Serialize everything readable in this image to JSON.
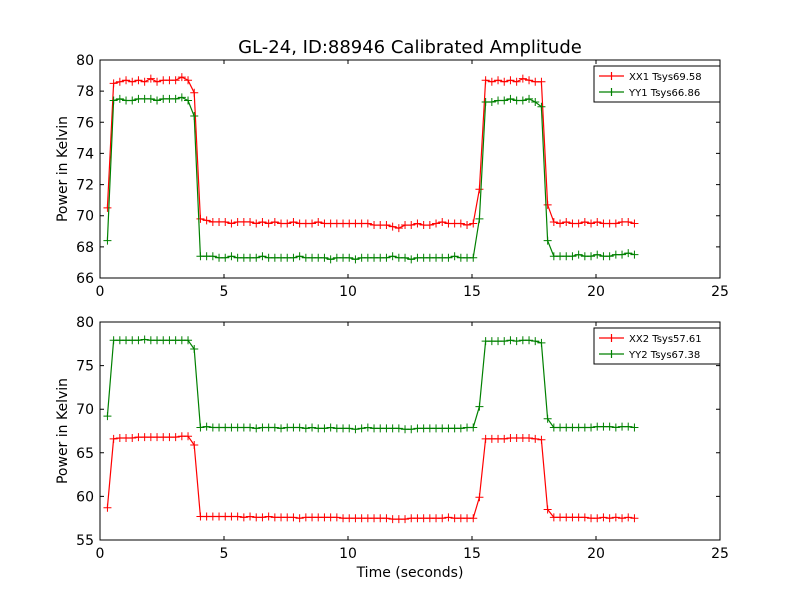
{
  "figure": {
    "title": "GL-24, ID:88946 Calibrated Amplitude",
    "xlabel": "Time (seconds)"
  },
  "chart_data": [
    {
      "type": "line",
      "ylabel": "Power in Kelvin",
      "xlim": [
        0,
        25
      ],
      "ylim": [
        66,
        80
      ],
      "xticks": [
        0,
        5,
        10,
        15,
        20,
        25
      ],
      "yticks": [
        66,
        68,
        70,
        72,
        74,
        76,
        78,
        80
      ],
      "legend_position": "top-right",
      "x": [
        0.3,
        0.55,
        0.8,
        1.05,
        1.3,
        1.55,
        1.8,
        2.05,
        2.3,
        2.55,
        2.8,
        3.05,
        3.3,
        3.55,
        3.8,
        4.05,
        4.3,
        4.55,
        4.8,
        5.05,
        5.3,
        5.55,
        5.8,
        6.05,
        6.3,
        6.55,
        6.8,
        7.05,
        7.3,
        7.55,
        7.8,
        8.05,
        8.3,
        8.55,
        8.8,
        9.05,
        9.3,
        9.55,
        9.8,
        10.05,
        10.3,
        10.55,
        10.8,
        11.05,
        11.3,
        11.55,
        11.8,
        12.05,
        12.3,
        12.55,
        12.8,
        13.05,
        13.3,
        13.55,
        13.8,
        14.05,
        14.3,
        14.55,
        14.8,
        15.05,
        15.3,
        15.55,
        15.8,
        16.05,
        16.3,
        16.55,
        16.8,
        17.05,
        17.3,
        17.55,
        17.8,
        18.05,
        18.3,
        18.55,
        18.8,
        19.05,
        19.3,
        19.55,
        19.8,
        20.05,
        20.3,
        20.55,
        20.8,
        21.05,
        21.3,
        21.55
      ],
      "series": [
        {
          "name": "XX1 Tsys69.58",
          "color": "#ff0000",
          "values": [
            70.5,
            78.5,
            78.6,
            78.7,
            78.6,
            78.7,
            78.6,
            78.8,
            78.6,
            78.7,
            78.7,
            78.7,
            78.9,
            78.7,
            77.9,
            69.8,
            69.7,
            69.6,
            69.6,
            69.6,
            69.5,
            69.6,
            69.6,
            69.6,
            69.5,
            69.6,
            69.5,
            69.6,
            69.5,
            69.5,
            69.6,
            69.5,
            69.5,
            69.5,
            69.6,
            69.5,
            69.5,
            69.5,
            69.5,
            69.5,
            69.5,
            69.5,
            69.5,
            69.4,
            69.4,
            69.4,
            69.3,
            69.2,
            69.4,
            69.4,
            69.5,
            69.4,
            69.4,
            69.5,
            69.6,
            69.5,
            69.5,
            69.5,
            69.4,
            69.5,
            71.7,
            78.7,
            78.6,
            78.7,
            78.6,
            78.7,
            78.6,
            78.8,
            78.7,
            78.6,
            78.6,
            70.7,
            69.6,
            69.5,
            69.6,
            69.5,
            69.5,
            69.6,
            69.5,
            69.6,
            69.5,
            69.5,
            69.5,
            69.6,
            69.6,
            69.5
          ]
        },
        {
          "name": "YY1 Tsys66.86",
          "color": "#008000",
          "values": [
            68.4,
            77.4,
            77.5,
            77.4,
            77.4,
            77.5,
            77.5,
            77.5,
            77.4,
            77.5,
            77.5,
            77.5,
            77.6,
            77.4,
            76.4,
            67.4,
            67.4,
            67.4,
            67.3,
            67.3,
            67.4,
            67.3,
            67.3,
            67.3,
            67.3,
            67.4,
            67.3,
            67.3,
            67.3,
            67.3,
            67.3,
            67.4,
            67.3,
            67.3,
            67.3,
            67.3,
            67.2,
            67.3,
            67.3,
            67.3,
            67.2,
            67.3,
            67.3,
            67.3,
            67.3,
            67.3,
            67.4,
            67.3,
            67.3,
            67.2,
            67.3,
            67.3,
            67.3,
            67.3,
            67.3,
            67.3,
            67.4,
            67.3,
            67.3,
            67.3,
            69.8,
            77.3,
            77.3,
            77.4,
            77.4,
            77.5,
            77.4,
            77.4,
            77.5,
            77.3,
            77.0,
            68.4,
            67.4,
            67.4,
            67.4,
            67.4,
            67.5,
            67.4,
            67.4,
            67.5,
            67.4,
            67.4,
            67.5,
            67.5,
            67.6,
            67.5
          ]
        }
      ]
    },
    {
      "type": "line",
      "ylabel": "Power in Kelvin",
      "xlabel": "Time (seconds)",
      "xlim": [
        0,
        25
      ],
      "ylim": [
        55,
        80
      ],
      "xticks": [
        0,
        5,
        10,
        15,
        20,
        25
      ],
      "yticks": [
        55,
        60,
        65,
        70,
        75,
        80
      ],
      "legend_position": "top-right",
      "x": [
        0.3,
        0.55,
        0.8,
        1.05,
        1.3,
        1.55,
        1.8,
        2.05,
        2.3,
        2.55,
        2.8,
        3.05,
        3.3,
        3.55,
        3.8,
        4.05,
        4.3,
        4.55,
        4.8,
        5.05,
        5.3,
        5.55,
        5.8,
        6.05,
        6.3,
        6.55,
        6.8,
        7.05,
        7.3,
        7.55,
        7.8,
        8.05,
        8.3,
        8.55,
        8.8,
        9.05,
        9.3,
        9.55,
        9.8,
        10.05,
        10.3,
        10.55,
        10.8,
        11.05,
        11.3,
        11.55,
        11.8,
        12.05,
        12.3,
        12.55,
        12.8,
        13.05,
        13.3,
        13.55,
        13.8,
        14.05,
        14.3,
        14.55,
        14.8,
        15.05,
        15.3,
        15.55,
        15.8,
        16.05,
        16.3,
        16.55,
        16.8,
        17.05,
        17.3,
        17.55,
        17.8,
        18.05,
        18.3,
        18.55,
        18.8,
        19.05,
        19.3,
        19.55,
        19.8,
        20.05,
        20.3,
        20.55,
        20.8,
        21.05,
        21.3,
        21.55
      ],
      "series": [
        {
          "name": "XX2 Tsys57.61",
          "color": "#ff0000",
          "values": [
            58.7,
            66.6,
            66.7,
            66.7,
            66.7,
            66.8,
            66.8,
            66.8,
            66.8,
            66.8,
            66.8,
            66.8,
            66.9,
            66.9,
            65.9,
            57.7,
            57.7,
            57.7,
            57.7,
            57.7,
            57.7,
            57.7,
            57.6,
            57.7,
            57.6,
            57.6,
            57.7,
            57.6,
            57.6,
            57.6,
            57.6,
            57.5,
            57.6,
            57.6,
            57.6,
            57.6,
            57.6,
            57.6,
            57.5,
            57.5,
            57.5,
            57.5,
            57.5,
            57.5,
            57.5,
            57.5,
            57.4,
            57.4,
            57.4,
            57.5,
            57.5,
            57.5,
            57.5,
            57.5,
            57.5,
            57.6,
            57.5,
            57.5,
            57.5,
            57.5,
            59.9,
            66.6,
            66.6,
            66.6,
            66.6,
            66.7,
            66.7,
            66.7,
            66.7,
            66.6,
            66.5,
            58.5,
            57.6,
            57.6,
            57.6,
            57.6,
            57.6,
            57.6,
            57.5,
            57.5,
            57.6,
            57.5,
            57.6,
            57.5,
            57.6,
            57.5
          ]
        },
        {
          "name": "YY2 Tsys67.38",
          "color": "#008000",
          "values": [
            69.2,
            77.9,
            77.9,
            77.9,
            77.9,
            77.9,
            78.0,
            77.9,
            77.9,
            77.9,
            77.9,
            77.9,
            77.9,
            77.9,
            76.9,
            67.9,
            68.0,
            67.9,
            67.9,
            67.9,
            67.9,
            67.9,
            67.9,
            67.9,
            67.8,
            67.9,
            67.9,
            67.9,
            67.8,
            67.9,
            67.9,
            67.9,
            67.8,
            67.9,
            67.8,
            67.8,
            67.9,
            67.8,
            67.8,
            67.8,
            67.7,
            67.8,
            67.9,
            67.8,
            67.8,
            67.8,
            67.8,
            67.8,
            67.7,
            67.7,
            67.8,
            67.8,
            67.8,
            67.8,
            67.8,
            67.8,
            67.8,
            67.8,
            67.9,
            67.9,
            70.3,
            77.8,
            77.8,
            77.8,
            77.8,
            77.9,
            77.8,
            77.9,
            77.9,
            77.8,
            77.6,
            68.9,
            67.9,
            67.9,
            67.9,
            67.9,
            67.9,
            67.9,
            67.9,
            68.0,
            68.0,
            68.0,
            67.9,
            68.0,
            68.0,
            67.9
          ]
        }
      ]
    }
  ]
}
